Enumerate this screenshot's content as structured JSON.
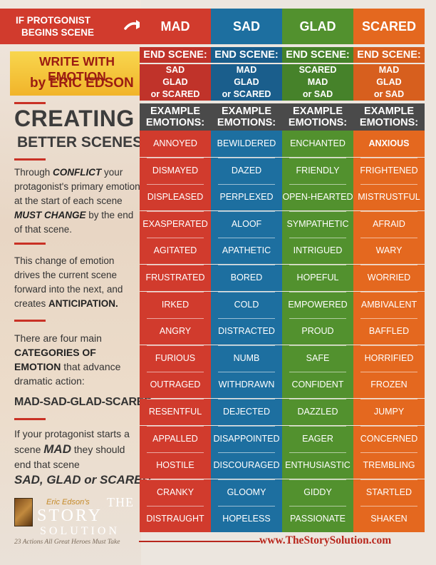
{
  "header": {
    "lead_line1": "IF PROTGONIST",
    "lead_line2": "BEGINS SCENE",
    "arrow_icon": "arrow-right-icon"
  },
  "branding": {
    "tagline_line1": "WRITE WITH EMOTION",
    "tagline_line2_prefix": "by",
    "author": "ERIC EDSON"
  },
  "left": {
    "title": "CREATING",
    "subtitle": "BETTER SCENES",
    "para1": "Through CONFLICT your protagonist's primary emotion at the start of each scene MUST CHANGE by the end of that scene.",
    "para2": "This change of emotion drives the current scene forward into the next, and creates ANTICIPATION.",
    "para3": "There are four main CATEGORIES OF EMOTION that advance dramatic action:",
    "categories_line": "MAD-SAD-GLAD-SCARED",
    "para4_a": "If your protagonist starts a scene",
    "para4_mad": "MAD",
    "para4_b": "they should",
    "para4_c": "end that scene",
    "final_line": "SAD, GLAD or SCARED"
  },
  "logo": {
    "top": "Eric Edson's",
    "the": "THE",
    "story": "STORY",
    "solution": "SOLUTION",
    "tag": "23 Actions All Great Heroes Must Take"
  },
  "labels": {
    "end_scene": "END SCENE:",
    "example_line1": "EXAMPLE",
    "example_line2": "EMOTIONS:"
  },
  "colors": {
    "mad": "#d13b2d",
    "sad": "#1d6fa0",
    "glad": "#52912e",
    "scared": "#e4681f",
    "mad_end": "#c0332a",
    "sad_end": "#1a5e8c",
    "glad_end": "#46822a",
    "scared_end": "#d75f1e"
  },
  "columns": [
    {
      "name": "MAD",
      "end": [
        "SAD",
        "GLAD",
        "or SCARED"
      ],
      "emotions": [
        "ANNOYED",
        "DISMAYED",
        "DISPLEASED",
        "EXASPERATED",
        "AGITATED",
        "FRUSTRATED",
        "IRKED",
        "ANGRY",
        "FURIOUS",
        "OUTRAGED",
        "RESENTFUL",
        "APPALLED",
        "HOSTILE",
        "CRANKY",
        "DISTRAUGHT"
      ]
    },
    {
      "name": "SAD",
      "end": [
        "MAD",
        "GLAD",
        "or SCARED"
      ],
      "emotions": [
        "BEWILDERED",
        "DAZED",
        "PERPLEXED",
        "ALOOF",
        "APATHETIC",
        "BORED",
        "COLD",
        "DISTRACTED",
        "NUMB",
        "WITHDRAWN",
        "DEJECTED",
        "DISAPPOINTED",
        "DISCOURAGED",
        "GLOOMY",
        "HOPELESS"
      ]
    },
    {
      "name": "GLAD",
      "end": [
        "SCARED",
        "MAD",
        "or SAD"
      ],
      "emotions": [
        "ENCHANTED",
        "FRIENDLY",
        "OPEN-HEARTED",
        "SYMPATHETIC",
        "INTRIGUED",
        "HOPEFUL",
        "EMPOWERED",
        "PROUD",
        "SAFE",
        "CONFIDENT",
        "DAZZLED",
        "EAGER",
        "ENTHUSIASTIC",
        "GIDDY",
        "PASSIONATE"
      ]
    },
    {
      "name": "SCARED",
      "end": [
        "MAD",
        "GLAD",
        "or SAD"
      ],
      "emotions": [
        "ANXIOUS",
        "FRIGHTENED",
        "MISTRUSTFUL",
        "AFRAID",
        "WARY",
        "WORRIED",
        "AMBIVALENT",
        "BAFFLED",
        "HORRIFIED",
        "FROZEN",
        "JUMPY",
        "CONCERNED",
        "TREMBLING",
        "STARTLED",
        "SHAKEN"
      ]
    }
  ],
  "footer": {
    "url": "www.TheStorySolution.com"
  }
}
